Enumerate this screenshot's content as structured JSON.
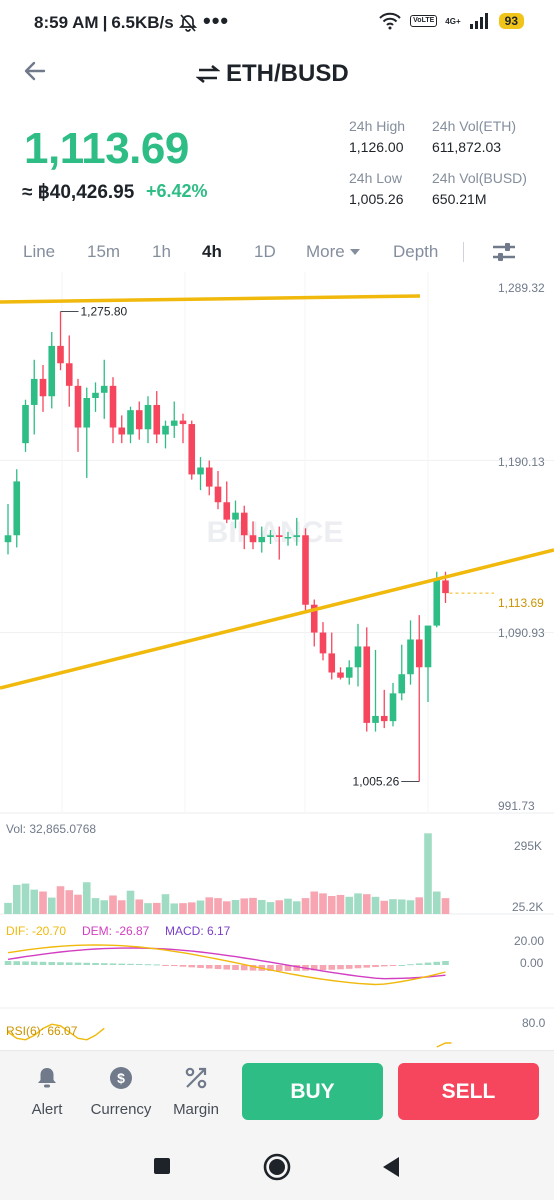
{
  "status_bar": {
    "time": "8:59 AM",
    "separator": "|",
    "net_speed": "6.5KB/s",
    "more": "•••",
    "volte": "VoLTE",
    "network": "4G+",
    "battery": "93"
  },
  "header": {
    "pair": "ETH/BUSD",
    "icons": [
      "back-arrow-icon",
      "swap-icon",
      "share-icon",
      "depth-chart-icon",
      "star-icon"
    ]
  },
  "price": {
    "last": "1,113.69",
    "approx": "≈ ฿40,426.95",
    "change": "+6.42%"
  },
  "stats": {
    "high_label": "24h High",
    "high_value": "1,126.00",
    "vol_eth_label": "24h Vol(ETH)",
    "vol_eth_value": "611,872.03",
    "low_label": "24h Low",
    "low_value": "1,005.26",
    "vol_busd_label": "24h Vol(BUSD)",
    "vol_busd_value": "650.21M"
  },
  "tabs": [
    {
      "label": "Line",
      "active": false
    },
    {
      "label": "15m",
      "active": false
    },
    {
      "label": "1h",
      "active": false
    },
    {
      "label": "4h",
      "active": true
    },
    {
      "label": "1D",
      "active": false
    },
    {
      "label": "More",
      "active": false
    },
    {
      "label": "Depth",
      "active": false
    }
  ],
  "chart_data": {
    "type": "candlestick",
    "y_axis_labels": [
      "1,289.32",
      "1,190.13",
      "1,090.93",
      "991.73"
    ],
    "ylim": [
      991.73,
      1289.32
    ],
    "current_price_label": "1,113.69",
    "max_annotation": "1,275.80",
    "min_annotation": "1,005.26",
    "watermark": "BINANCE",
    "colors": {
      "up": "#2ebd85",
      "down": "#f6465d",
      "trendline": "#f0b90b",
      "up_light": "#9fdcc3",
      "down_light": "#f7a5b1"
    },
    "candles": [
      {
        "o": 1143,
        "h": 1165,
        "l": 1136,
        "c": 1147
      },
      {
        "o": 1147,
        "h": 1185,
        "l": 1140,
        "c": 1178
      },
      {
        "o": 1200,
        "h": 1225,
        "l": 1195,
        "c": 1222
      },
      {
        "o": 1222,
        "h": 1248,
        "l": 1205,
        "c": 1237
      },
      {
        "o": 1237,
        "h": 1245,
        "l": 1218,
        "c": 1227
      },
      {
        "o": 1227,
        "h": 1264,
        "l": 1220,
        "c": 1256
      },
      {
        "o": 1256,
        "h": 1275.8,
        "l": 1242,
        "c": 1246
      },
      {
        "o": 1246,
        "h": 1262,
        "l": 1221,
        "c": 1233
      },
      {
        "o": 1233,
        "h": 1237,
        "l": 1195,
        "c": 1209
      },
      {
        "o": 1209,
        "h": 1232,
        "l": 1180,
        "c": 1226
      },
      {
        "o": 1226,
        "h": 1235,
        "l": 1218,
        "c": 1229
      },
      {
        "o": 1229,
        "h": 1248,
        "l": 1214,
        "c": 1233
      },
      {
        "o": 1233,
        "h": 1238,
        "l": 1200,
        "c": 1209
      },
      {
        "o": 1209,
        "h": 1216,
        "l": 1200,
        "c": 1205
      },
      {
        "o": 1205,
        "h": 1221,
        "l": 1200,
        "c": 1219
      },
      {
        "o": 1219,
        "h": 1224,
        "l": 1202,
        "c": 1208
      },
      {
        "o": 1208,
        "h": 1227,
        "l": 1200,
        "c": 1222
      },
      {
        "o": 1222,
        "h": 1230,
        "l": 1200,
        "c": 1205
      },
      {
        "o": 1205,
        "h": 1213,
        "l": 1197,
        "c": 1210
      },
      {
        "o": 1210,
        "h": 1224,
        "l": 1203,
        "c": 1213
      },
      {
        "o": 1213,
        "h": 1217,
        "l": 1200,
        "c": 1211
      },
      {
        "o": 1211,
        "h": 1213,
        "l": 1179,
        "c": 1182
      },
      {
        "o": 1182,
        "h": 1192,
        "l": 1173,
        "c": 1186
      },
      {
        "o": 1186,
        "h": 1190,
        "l": 1170,
        "c": 1175
      },
      {
        "o": 1175,
        "h": 1184,
        "l": 1162,
        "c": 1166
      },
      {
        "o": 1166,
        "h": 1178,
        "l": 1154,
        "c": 1156
      },
      {
        "o": 1156,
        "h": 1167,
        "l": 1151,
        "c": 1160
      },
      {
        "o": 1160,
        "h": 1164,
        "l": 1139,
        "c": 1147
      },
      {
        "o": 1147,
        "h": 1155,
        "l": 1139,
        "c": 1143
      },
      {
        "o": 1143,
        "h": 1152,
        "l": 1137,
        "c": 1146
      },
      {
        "o": 1146,
        "h": 1150,
        "l": 1142,
        "c": 1147
      },
      {
        "o": 1147,
        "h": 1152,
        "l": 1133,
        "c": 1146
      },
      {
        "o": 1146,
        "h": 1149,
        "l": 1141,
        "c": 1146
      },
      {
        "o": 1146,
        "h": 1157,
        "l": 1141,
        "c": 1147
      },
      {
        "o": 1147,
        "h": 1151,
        "l": 1103,
        "c": 1107
      },
      {
        "o": 1107,
        "h": 1110,
        "l": 1083,
        "c": 1091
      },
      {
        "o": 1091,
        "h": 1097,
        "l": 1075,
        "c": 1079
      },
      {
        "o": 1079,
        "h": 1091,
        "l": 1064,
        "c": 1068
      },
      {
        "o": 1068,
        "h": 1071,
        "l": 1064,
        "c": 1065
      },
      {
        "o": 1065,
        "h": 1075,
        "l": 1061,
        "c": 1071
      },
      {
        "o": 1071,
        "h": 1096,
        "l": 1060,
        "c": 1083
      },
      {
        "o": 1083,
        "h": 1094,
        "l": 1034,
        "c": 1039
      },
      {
        "o": 1039,
        "h": 1081,
        "l": 1034,
        "c": 1043
      },
      {
        "o": 1043,
        "h": 1058,
        "l": 1036,
        "c": 1040
      },
      {
        "o": 1040,
        "h": 1062,
        "l": 1037,
        "c": 1056
      },
      {
        "o": 1056,
        "h": 1084,
        "l": 1052,
        "c": 1067
      },
      {
        "o": 1067,
        "h": 1098,
        "l": 1061,
        "c": 1087
      },
      {
        "o": 1087,
        "h": 1101,
        "l": 1005.26,
        "c": 1071
      },
      {
        "o": 1071,
        "h": 1095,
        "l": 1051,
        "c": 1095
      },
      {
        "o": 1095,
        "h": 1126,
        "l": 1094,
        "c": 1122
      },
      {
        "o": 1121,
        "h": 1126,
        "l": 1108,
        "c": 1113.69
      }
    ],
    "volume": {
      "label": "Vol: 32,865.0768",
      "axis_labels": [
        "295K",
        "25.2K"
      ],
      "ylim": [
        0,
        310000
      ],
      "values": [
        42000,
        110000,
        115000,
        92000,
        85000,
        62000,
        105000,
        90000,
        73000,
        120000,
        60000,
        52000,
        70000,
        52000,
        88000,
        55000,
        41000,
        42000,
        75000,
        40000,
        41000,
        44000,
        51000,
        63000,
        60000,
        48000,
        53000,
        59000,
        61000,
        53000,
        45000,
        52000,
        58000,
        48000,
        60000,
        85000,
        78000,
        68000,
        72000,
        65000,
        78000,
        75000,
        65000,
        50000,
        56000,
        55000,
        52000,
        63000,
        305000,
        85000,
        60000
      ]
    },
    "macd": {
      "dif_label": "DIF: -20.70",
      "dem_label": "DEM: -26.87",
      "macd_label": "MACD: 6.17",
      "axis_labels": [
        "20.00",
        "0.00"
      ]
    },
    "rsi": {
      "label": "RSI(6): 66.07",
      "axis_label": "80.0"
    }
  },
  "bottom_bar": {
    "alert": "Alert",
    "currency": "Currency",
    "margin": "Margin",
    "buy": "BUY",
    "sell": "SELL"
  }
}
